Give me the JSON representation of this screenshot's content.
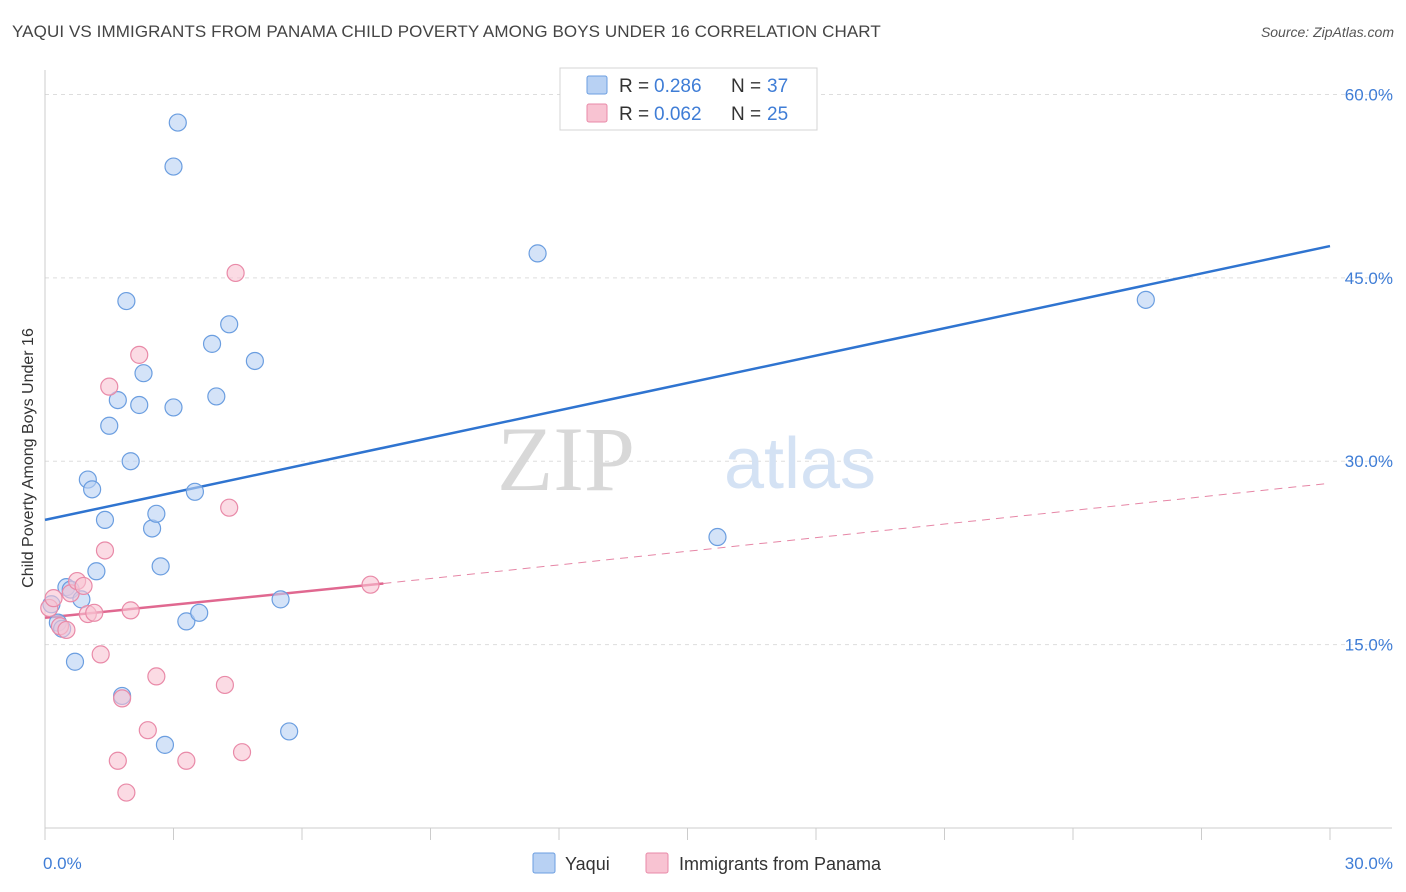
{
  "title": "YAQUI VS IMMIGRANTS FROM PANAMA CHILD POVERTY AMONG BOYS UNDER 16 CORRELATION CHART",
  "source": "Source: ZipAtlas.com",
  "colors": {
    "blue_fill": "#b8d1f3",
    "blue_stroke": "#6b9ee0",
    "blue_line": "#2f74d0",
    "pink_fill": "#f8c3d2",
    "pink_stroke": "#e98aa8",
    "pink_line": "#e06890",
    "tick_text": "#3f7dd6",
    "grid": "#dddddd"
  },
  "chart_data": {
    "type": "scatter",
    "xlabel": "",
    "ylabel": "Child Poverty Among Boys Under 16",
    "xlim": [
      0,
      30
    ],
    "ylim": [
      0,
      62
    ],
    "x_tick_labels": [
      {
        "value": 0,
        "label": "0.0%"
      },
      {
        "value": 30,
        "label": "30.0%"
      }
    ],
    "y_tick_labels": [
      {
        "value": 15,
        "label": "15.0%"
      },
      {
        "value": 30,
        "label": "30.0%"
      },
      {
        "value": 45,
        "label": "45.0%"
      },
      {
        "value": 60,
        "label": "60.0%"
      }
    ],
    "watermark": {
      "part1": "ZIP",
      "part2": "atlas"
    },
    "legend": [
      {
        "r_label": "R = ",
        "r_value": "0.286",
        "n_label": "N = ",
        "n_value": "37"
      },
      {
        "r_label": "R = ",
        "r_value": "0.062",
        "n_label": "N = ",
        "n_value": "25"
      }
    ],
    "series": [
      {
        "name": "Yaqui",
        "color_key": "blue",
        "points": [
          [
            0.15,
            18.3
          ],
          [
            0.3,
            16.8
          ],
          [
            0.4,
            16.3
          ],
          [
            0.5,
            19.7
          ],
          [
            0.6,
            19.5
          ],
          [
            0.7,
            13.6
          ],
          [
            0.85,
            18.7
          ],
          [
            1.0,
            28.5
          ],
          [
            1.1,
            27.7
          ],
          [
            1.2,
            21.0
          ],
          [
            1.4,
            25.2
          ],
          [
            1.5,
            32.9
          ],
          [
            1.7,
            35.0
          ],
          [
            1.8,
            10.8
          ],
          [
            1.9,
            43.1
          ],
          [
            2.0,
            30.0
          ],
          [
            2.2,
            34.6
          ],
          [
            2.3,
            37.2
          ],
          [
            2.5,
            24.5
          ],
          [
            2.6,
            25.7
          ],
          [
            2.7,
            21.4
          ],
          [
            2.8,
            6.8
          ],
          [
            3.0,
            54.1
          ],
          [
            3.0,
            34.4
          ],
          [
            3.1,
            57.7
          ],
          [
            3.3,
            16.9
          ],
          [
            3.5,
            27.5
          ],
          [
            3.6,
            17.6
          ],
          [
            3.9,
            39.6
          ],
          [
            4.0,
            35.3
          ],
          [
            4.3,
            41.2
          ],
          [
            4.9,
            38.2
          ],
          [
            5.5,
            18.7
          ],
          [
            5.7,
            7.9
          ],
          [
            11.5,
            47.0
          ],
          [
            15.7,
            23.8
          ],
          [
            25.7,
            43.2
          ]
        ],
        "trend": {
          "x": [
            0,
            30
          ],
          "y": [
            25.2,
            47.6
          ],
          "dashed_extension": false
        }
      },
      {
        "name": "Immigrants from Panama",
        "color_key": "pink",
        "points": [
          [
            0.1,
            18.0
          ],
          [
            0.2,
            18.8
          ],
          [
            0.35,
            16.5
          ],
          [
            0.5,
            16.2
          ],
          [
            0.6,
            19.2
          ],
          [
            0.75,
            20.2
          ],
          [
            0.9,
            19.8
          ],
          [
            1.0,
            17.5
          ],
          [
            1.15,
            17.6
          ],
          [
            1.3,
            14.2
          ],
          [
            1.4,
            22.7
          ],
          [
            1.5,
            36.1
          ],
          [
            1.7,
            5.5
          ],
          [
            1.8,
            10.6
          ],
          [
            1.9,
            2.9
          ],
          [
            2.0,
            17.8
          ],
          [
            2.2,
            38.7
          ],
          [
            2.4,
            8.0
          ],
          [
            2.6,
            12.4
          ],
          [
            3.3,
            5.5
          ],
          [
            4.2,
            11.7
          ],
          [
            4.3,
            26.2
          ],
          [
            4.45,
            45.4
          ],
          [
            4.6,
            6.2
          ],
          [
            7.6,
            19.9
          ]
        ],
        "trend": {
          "x": [
            0,
            7.9
          ],
          "y": [
            17.2,
            20.0
          ],
          "dashed_extension": {
            "x": [
              7.9,
              30
            ],
            "y": [
              20.0,
              28.2
            ]
          }
        }
      }
    ]
  }
}
